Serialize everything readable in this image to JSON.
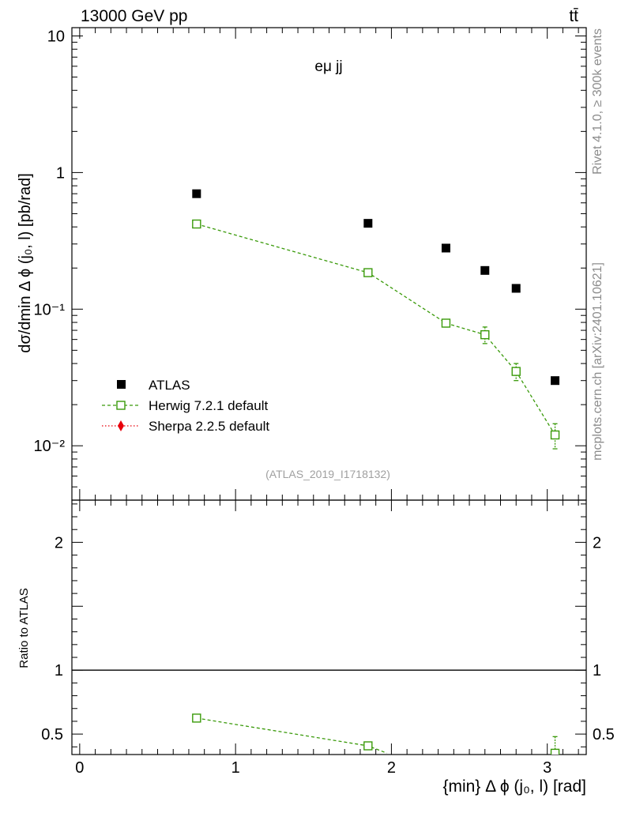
{
  "chart_data": {
    "type": "scatter",
    "header": {
      "left": "13000 GeV pp",
      "right": "tt̄"
    },
    "side_labels": {
      "rivet": "Rivet 4.1.0, ≥ 300k events",
      "source": "mcplots.cern.ch [arXiv:2401.10621]"
    },
    "annotation": "eμ jj",
    "analysis_id": "(ATLAS_2019_I1718132)",
    "xlabel": "{min} Δ ϕ (j₀, l) [rad]",
    "xlim": [
      -0.05,
      3.25
    ],
    "x_ticks": [
      {
        "v": 0,
        "label": "0"
      },
      {
        "v": 1,
        "label": "1"
      },
      {
        "v": 2,
        "label": "2"
      },
      {
        "v": 3,
        "label": "3"
      }
    ],
    "main_panel": {
      "ylabel": "dσ/dmin Δ ϕ (j₀, l) [pb/rad]",
      "yscale": "log",
      "ylim": [
        0.004,
        11.5
      ],
      "y_ticks": [
        {
          "v": 10,
          "label": "10"
        },
        {
          "v": 1,
          "label": "1"
        },
        {
          "v": 0.1,
          "label": "10⁻¹"
        },
        {
          "v": 0.01,
          "label": "10⁻²"
        }
      ],
      "series": [
        {
          "name": "ATLAS",
          "color": "#000000",
          "marker": "filled-square",
          "x": [
            0.75,
            1.85,
            2.35,
            2.6,
            2.8,
            3.05
          ],
          "y": [
            0.7,
            0.425,
            0.28,
            0.192,
            0.142,
            0.03
          ]
        },
        {
          "name": "Herwig 7.2.1 default",
          "color": "#3a9a0a",
          "marker": "open-square",
          "line": "dashed",
          "x": [
            0.75,
            1.85,
            2.35,
            2.6,
            2.8,
            3.05
          ],
          "y": [
            0.42,
            0.185,
            0.079,
            0.065,
            0.035,
            0.012
          ],
          "yerr": [
            0.006,
            0.007,
            0.005,
            0.009,
            0.005,
            0.0025
          ]
        },
        {
          "name": "Sherpa 2.2.5 default",
          "color": "#e8000b",
          "marker": "filled-diamond",
          "line": "dotted",
          "x": [],
          "y": []
        }
      ]
    },
    "ratio_panel": {
      "ylabel": "Ratio to ATLAS",
      "ylim": [
        0.34,
        2.33
      ],
      "y_ticks": [
        {
          "v": 0.5,
          "label": "0.5"
        },
        {
          "v": 1,
          "label": "1"
        },
        {
          "v": 2,
          "label": "2"
        }
      ],
      "reference": 1,
      "series": [
        {
          "name": "Herwig 7.2.1 default",
          "color": "#3a9a0a",
          "x": [
            0.75,
            1.85,
            3.05
          ],
          "y": [
            0.625,
            0.408,
            0.35
          ],
          "yerr": [
            0.008,
            0.015,
            0.13
          ]
        }
      ]
    }
  }
}
